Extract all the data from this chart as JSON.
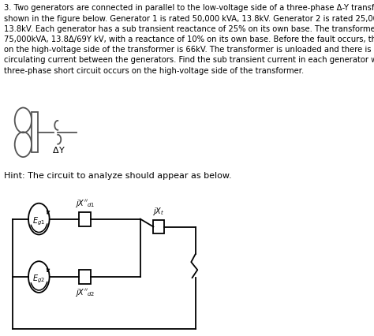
{
  "title_text": "3. Two generators are connected in parallel to the low-voltage side of a three-phase Δ-Y transformer, as\nshown in the figure below. Generator 1 is rated 50,000 kVA, 13.8kV. Generator 2 is rated 25,000kVA,\n13.8kV. Each generator has a sub transient reactance of 25% on its own base. The transformer is rated\n75,000kVA, 13.8Δ/69Y kV, with a reactance of 10% on its own base. Before the fault occurs, the voltage\non the high-voltage side of the transformer is 66kV. The transformer is unloaded and there is no\ncirculating current between the generators. Find the sub transient current in each generator when a\nthree-phase short circuit occurs on the high-voltage side of the transformer.",
  "hint_text": "Hint: The circuit to analyze should appear as below.",
  "bg_color": "#ffffff",
  "text_color": "#000000",
  "font_size_body": 7.2,
  "font_size_hint": 8.0
}
